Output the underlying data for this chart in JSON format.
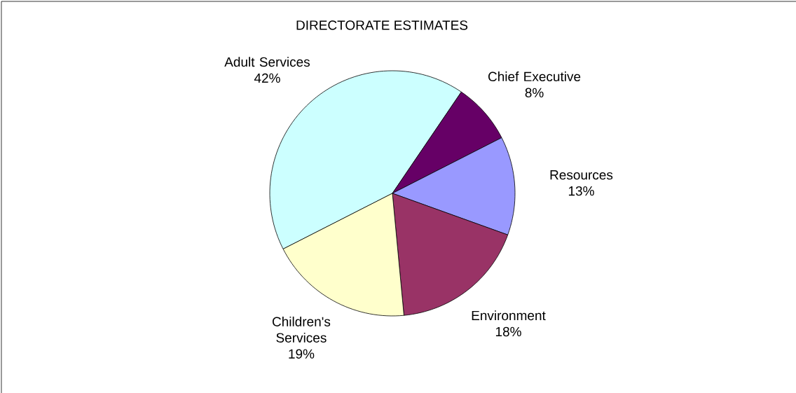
{
  "chart_data": {
    "type": "pie",
    "title": "DIRECTORATE ESTIMATES",
    "categories": [
      "Adult Services",
      "Chief Executive",
      "Resources",
      "Environment",
      "Children's Services"
    ],
    "values": [
      42,
      8,
      13,
      18,
      19
    ],
    "value_labels": [
      "42%",
      "8%",
      "13%",
      "18%",
      "19%"
    ],
    "colors": [
      "#ccffff",
      "#660066",
      "#9999ff",
      "#993366",
      "#ffffcc"
    ]
  }
}
